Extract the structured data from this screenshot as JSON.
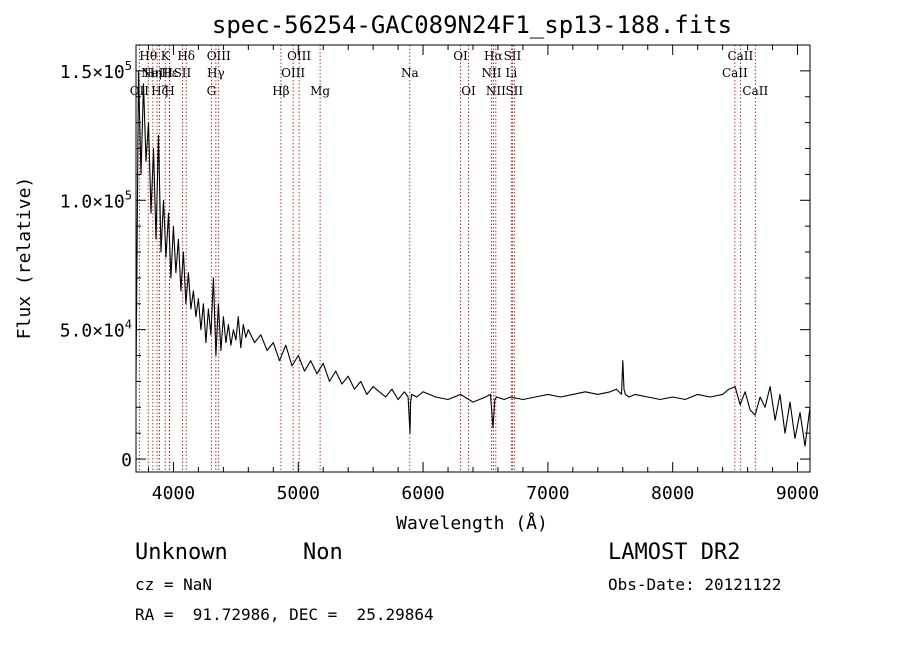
{
  "chart_data": {
    "type": "line",
    "title": "spec-56254-GAC089N24F1_sp13-188.fits",
    "xlabel": "Wavelength (Å)",
    "ylabel": "Flux (relative)",
    "xlim": [
      3700,
      9100
    ],
    "ylim": [
      -5000,
      160000
    ],
    "x_ticks": [
      4000,
      5000,
      6000,
      7000,
      8000,
      9000
    ],
    "x_tick_labels": [
      "4000",
      "5000",
      "6000",
      "7000",
      "8000",
      "9000"
    ],
    "y_ticks": [
      {
        "value": 0,
        "mant": "0",
        "exp": ""
      },
      {
        "value": 50000,
        "mant": "5.0×10",
        "exp": "4"
      },
      {
        "value": 100000,
        "mant": "1.0×10",
        "exp": "5"
      },
      {
        "value": 150000,
        "mant": "1.5×10",
        "exp": "5"
      }
    ],
    "grid": false,
    "series": [
      {
        "color": "#000000",
        "x": [
          3700,
          3720,
          3740,
          3760,
          3780,
          3800,
          3820,
          3840,
          3860,
          3880,
          3900,
          3920,
          3940,
          3960,
          3980,
          4000,
          4020,
          4040,
          4060,
          4080,
          4100,
          4120,
          4140,
          4160,
          4180,
          4200,
          4220,
          4240,
          4260,
          4280,
          4300,
          4320,
          4340,
          4360,
          4380,
          4400,
          4420,
          4440,
          4460,
          4480,
          4500,
          4520,
          4540,
          4560,
          4580,
          4600,
          4650,
          4700,
          4750,
          4800,
          4850,
          4900,
          4950,
          5000,
          5050,
          5100,
          5150,
          5200,
          5250,
          5300,
          5350,
          5400,
          5450,
          5500,
          5550,
          5600,
          5650,
          5700,
          5750,
          5800,
          5850,
          5880,
          5895,
          5900,
          5910,
          5950,
          6000,
          6100,
          6200,
          6300,
          6400,
          6500,
          6540,
          6560,
          6575,
          6590,
          6650,
          6700,
          6800,
          6900,
          7000,
          7100,
          7200,
          7300,
          7400,
          7500,
          7550,
          7590,
          7600,
          7610,
          7620,
          7650,
          7700,
          7800,
          7900,
          8000,
          8100,
          8200,
          8300,
          8400,
          8450,
          8500,
          8540,
          8580,
          8620,
          8660,
          8700,
          8740,
          8780,
          8820,
          8860,
          8900,
          8940,
          8980,
          9020,
          9060,
          9100
        ],
        "y": [
          30000,
          150000,
          110000,
          145000,
          115000,
          130000,
          95000,
          120000,
          85000,
          125000,
          80000,
          100000,
          78000,
          95000,
          70000,
          90000,
          72000,
          85000,
          65000,
          80000,
          60000,
          72000,
          58000,
          65000,
          55000,
          62000,
          50000,
          60000,
          45000,
          58000,
          48000,
          70000,
          40000,
          60000,
          42000,
          55000,
          45000,
          52000,
          44000,
          50000,
          46000,
          55000,
          43000,
          52000,
          47000,
          50000,
          45000,
          48000,
          42000,
          45000,
          38000,
          44000,
          36000,
          40000,
          34000,
          38000,
          33000,
          37000,
          30000,
          34000,
          29000,
          32000,
          27000,
          30000,
          25000,
          28000,
          26000,
          24000,
          27000,
          23000,
          26000,
          24000,
          10000,
          22000,
          25000,
          24000,
          26000,
          24000,
          23000,
          25000,
          22000,
          24000,
          25000,
          12000,
          23000,
          24000,
          23000,
          24000,
          23000,
          24000,
          25000,
          24000,
          25000,
          26000,
          25000,
          26000,
          27000,
          25000,
          38000,
          27000,
          25000,
          24000,
          25000,
          24000,
          23000,
          24000,
          23000,
          25000,
          24000,
          25000,
          27000,
          28000,
          21000,
          26000,
          19000,
          17000,
          24000,
          20000,
          28000,
          15000,
          25000,
          10000,
          22000,
          8000,
          18000,
          5000,
          20000
        ]
      }
    ],
    "lines": [
      {
        "x": 3727,
        "label": "OII",
        "row": 3
      },
      {
        "x": 3798,
        "label": "Hθ",
        "row": 1
      },
      {
        "x": 3835,
        "label": "Hη",
        "row": 2
      },
      {
        "x": 3869,
        "label": "NeIII",
        "row": 2
      },
      {
        "x": 3889,
        "label": "Hζ",
        "row": 3
      },
      {
        "x": 3934,
        "label": "K",
        "row": 1
      },
      {
        "x": 3969,
        "label": "H",
        "row": 3
      },
      {
        "x": 3970,
        "label": "Hε",
        "row": 2
      },
      {
        "x": 4072,
        "label": "SII",
        "row": 2
      },
      {
        "x": 4102,
        "label": "Hδ",
        "row": 1
      },
      {
        "x": 4304,
        "label": "G",
        "row": 3
      },
      {
        "x": 4340,
        "label": "Hγ",
        "row": 2
      },
      {
        "x": 4363,
        "label": "OIII",
        "row": 1
      },
      {
        "x": 4861,
        "label": "Hβ",
        "row": 3
      },
      {
        "x": 4959,
        "label": "OIII",
        "row": 2
      },
      {
        "x": 5007,
        "label": "OIII",
        "row": 1
      },
      {
        "x": 5175,
        "label": "Mg",
        "row": 3
      },
      {
        "x": 5894,
        "label": "Na",
        "row": 2
      },
      {
        "x": 6300,
        "label": "OI",
        "row": 1
      },
      {
        "x": 6364,
        "label": "OI",
        "row": 3
      },
      {
        "x": 6548,
        "label": "NII",
        "row": 2
      },
      {
        "x": 6563,
        "label": "Hα",
        "row": 1
      },
      {
        "x": 6583,
        "label": "NII",
        "row": 3
      },
      {
        "x": 6707,
        "label": "Li",
        "row": 2
      },
      {
        "x": 6716,
        "label": "SII",
        "row": 1
      },
      {
        "x": 6731,
        "label": "SII",
        "row": 3
      },
      {
        "x": 8498,
        "label": "CaII",
        "row": 2
      },
      {
        "x": 8542,
        "label": "CaII",
        "row": 1
      },
      {
        "x": 8662,
        "label": "CaII",
        "row": 3
      }
    ],
    "line_color": "#aa0000"
  },
  "info": {
    "object_class": "Unknown",
    "object_subclass": "Non",
    "redshift": "cz = NaN",
    "coordinates": "RA =  91.72986, DEC =  25.29864",
    "survey": "LAMOST DR2",
    "obs_date": "Obs-Date: 20121122"
  }
}
